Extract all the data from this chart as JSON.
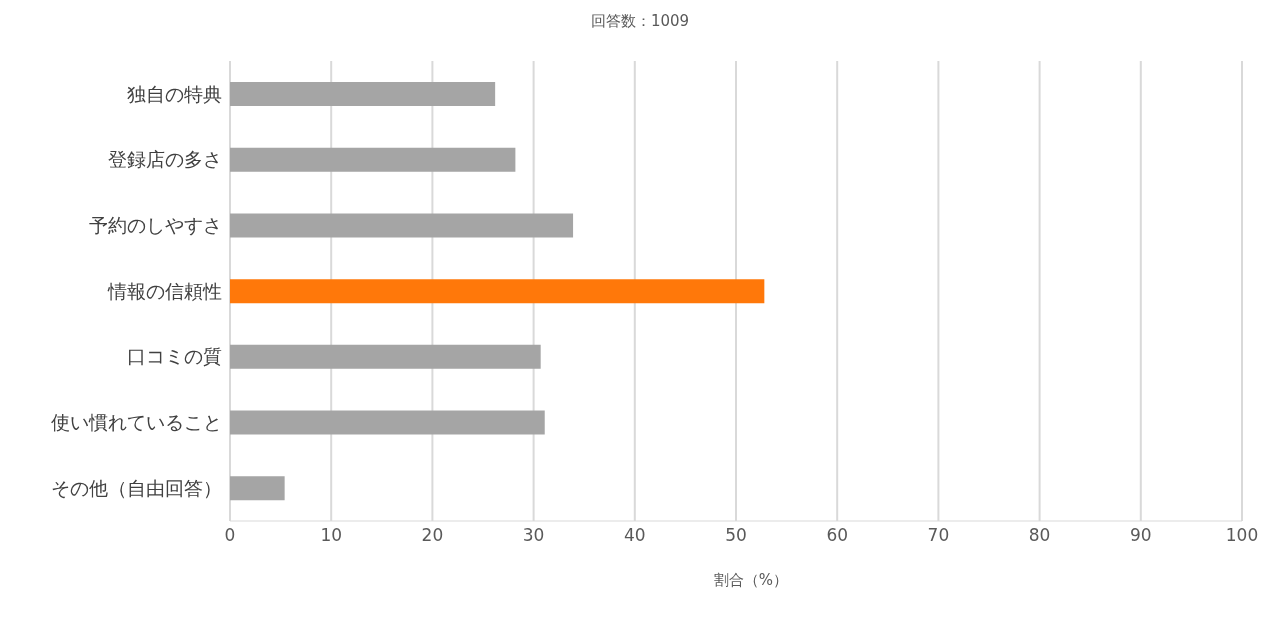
{
  "chart_data": {
    "type": "bar",
    "orientation": "horizontal",
    "title": "回答数：1009",
    "xlabel": "割合（%）",
    "categories": [
      "独自の特典",
      "登録店の多さ",
      "予約のしやすさ",
      "情報の信頼性",
      "口コミの質",
      "使い慣れていること",
      "その他（自由回答）"
    ],
    "values": [
      26.2,
      28.2,
      33.9,
      52.8,
      30.7,
      31.1,
      5.4
    ],
    "colors": [
      "#a5a5a5",
      "#a5a5a5",
      "#a5a5a5",
      "#ff780a",
      "#a5a5a5",
      "#a5a5a5",
      "#a5a5a5"
    ],
    "xlim": [
      0,
      100
    ],
    "xticks": [
      0,
      10,
      20,
      30,
      40,
      50,
      60,
      70,
      80,
      90,
      100
    ],
    "grid": "x",
    "legend": false
  }
}
